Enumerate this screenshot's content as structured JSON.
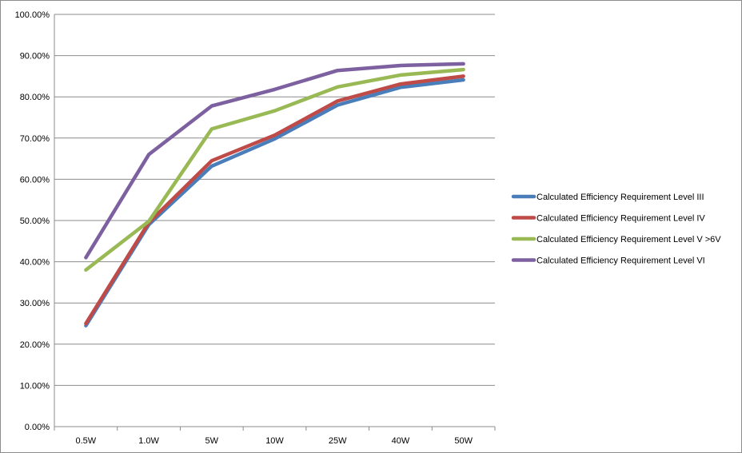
{
  "chart_data": {
    "type": "line",
    "title": "",
    "xlabel": "",
    "ylabel": "",
    "categories": [
      "0.5W",
      "1.0W",
      "5W",
      "10W",
      "25W",
      "40W",
      "50W"
    ],
    "ylim": [
      0,
      100
    ],
    "y_ticks": [
      "0.00%",
      "10.00%",
      "20.00%",
      "30.00%",
      "40.00%",
      "50.00%",
      "60.00%",
      "70.00%",
      "80.00%",
      "90.00%",
      "100.00%"
    ],
    "grid": true,
    "legend_position": "right",
    "series": [
      {
        "name": "Calculated Efficiency Requirement Level III",
        "color": "#4a7ebb",
        "values": [
          24.5,
          49,
          63.2,
          69.8,
          78,
          82.3,
          84.1
        ]
      },
      {
        "name": "Calculated Efficiency Requirement Level IV",
        "color": "#be4b48",
        "values": [
          25,
          49.5,
          64.5,
          70.7,
          79,
          83.1,
          85
        ]
      },
      {
        "name": "Calculated Efficiency Requirement Level V >6V",
        "color": "#98b954",
        "values": [
          38,
          49.8,
          72.2,
          76.6,
          82.4,
          85.3,
          86.6
        ]
      },
      {
        "name": "Calculated Efficiency Requirement Level VI",
        "color": "#7d60a0",
        "values": [
          41,
          66,
          77.8,
          81.8,
          86.4,
          87.6,
          88
        ]
      }
    ]
  }
}
